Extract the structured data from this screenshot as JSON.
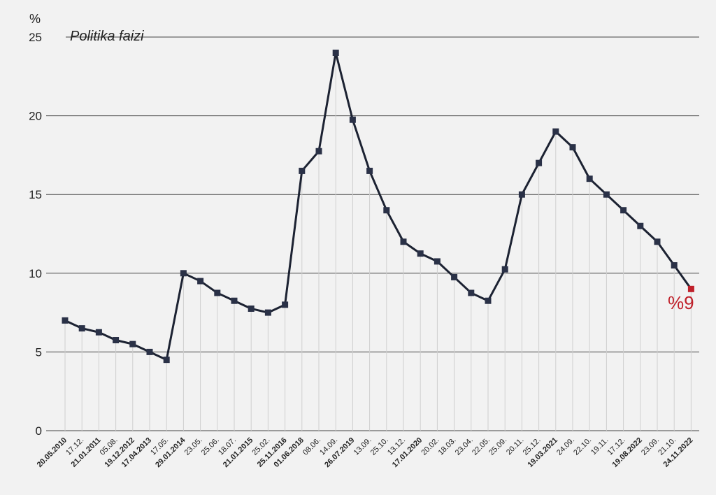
{
  "chart_data": {
    "type": "line",
    "title": "Politika faizi",
    "ylabel": "%",
    "ylim": [
      0,
      25
    ],
    "yticks": [
      0,
      5,
      10,
      15,
      20,
      25
    ],
    "grid": true,
    "series": [
      {
        "name": "",
        "x": [
          "20.05.2010",
          "17.12.",
          "21.01.2011",
          "05.08.",
          "19.12.2012",
          "17.04.2013",
          "17.05.",
          "29.01.2014",
          "23.05.",
          "25.06.",
          "18.07.",
          "21.01.2015",
          "25.02.",
          "25.11.2016",
          "01.06.2018",
          "08.06.",
          "14.09.",
          "26.07.2019",
          "13.09.",
          "25.10.",
          "13.12.",
          "17.01.2020",
          "20.02.",
          "18.03.",
          "23.04.",
          "22.05.",
          "25.09.",
          "20.11.",
          "25.12.",
          "19.03.2021",
          "24.09.",
          "22.10.",
          "19.11.",
          "17.12.",
          "19.08.2022",
          "23.09.",
          "21.10.",
          "24.11.2022"
        ],
        "values": [
          7,
          6.5,
          6.25,
          5.75,
          5.5,
          5,
          4.5,
          10,
          9.5,
          8.75,
          8.25,
          7.75,
          7.5,
          8,
          16.5,
          17.75,
          24,
          19.75,
          16.5,
          14,
          12,
          11.25,
          10.75,
          9.75,
          8.75,
          8.25,
          10.25,
          15,
          17,
          19,
          18,
          16,
          15,
          14,
          13,
          12,
          10.5,
          9
        ]
      }
    ],
    "bold_labels": [
      "20.05.2010",
      "21.01.2011",
      "19.12.2012",
      "17.04.2013",
      "29.01.2014",
      "21.01.2015",
      "25.11.2016",
      "01.06.2018",
      "26.07.2019",
      "17.01.2020",
      "19.03.2021",
      "19.08.2022",
      "24.11.2022"
    ],
    "highlight_label": "24.11.2022",
    "annotation": "%9",
    "colors": {
      "background": "#f2f2f2",
      "line": "#1c2232",
      "marker": "#2a3147",
      "highlight": "#c0202a",
      "grid": "#444444",
      "dropline": "#cfcfcf"
    }
  }
}
